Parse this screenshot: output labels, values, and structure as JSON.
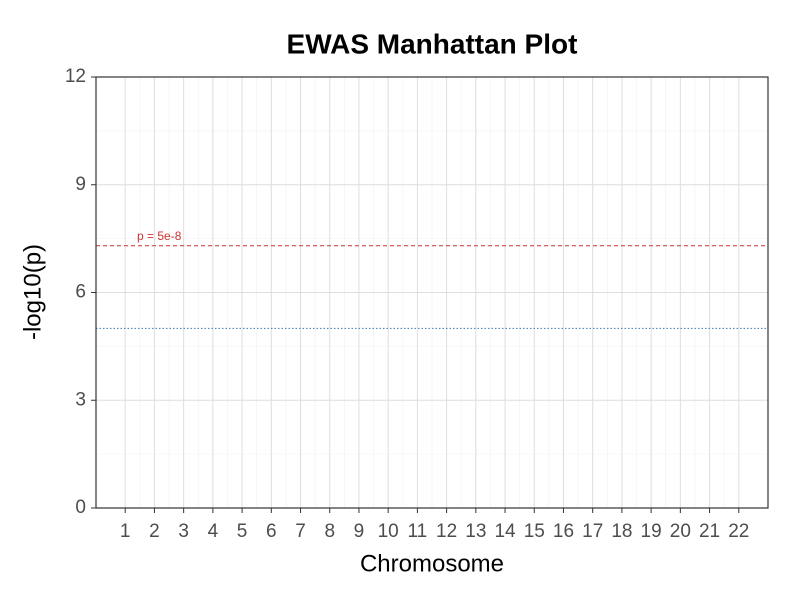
{
  "chart_data": {
    "type": "scatter",
    "title": "EWAS Manhattan Plot",
    "x_label": "Chromosome",
    "y_label": "-log10(p)",
    "xlim": [
      0,
      23
    ],
    "xticks": [
      1,
      2,
      3,
      4,
      5,
      6,
      7,
      8,
      9,
      10,
      11,
      12,
      13,
      14,
      15,
      16,
      17,
      18,
      19,
      20,
      21,
      22
    ],
    "ylim": [
      0,
      12
    ],
    "yticks": [
      0,
      3,
      6,
      9,
      12
    ],
    "grid": true,
    "series": [],
    "hlines": [
      {
        "value": 7.3,
        "label": "p = 5e-8",
        "color": "#cc3333",
        "style": "dashed"
      },
      {
        "value": 5,
        "color": "#3a78b5",
        "style": "dotted"
      }
    ]
  }
}
